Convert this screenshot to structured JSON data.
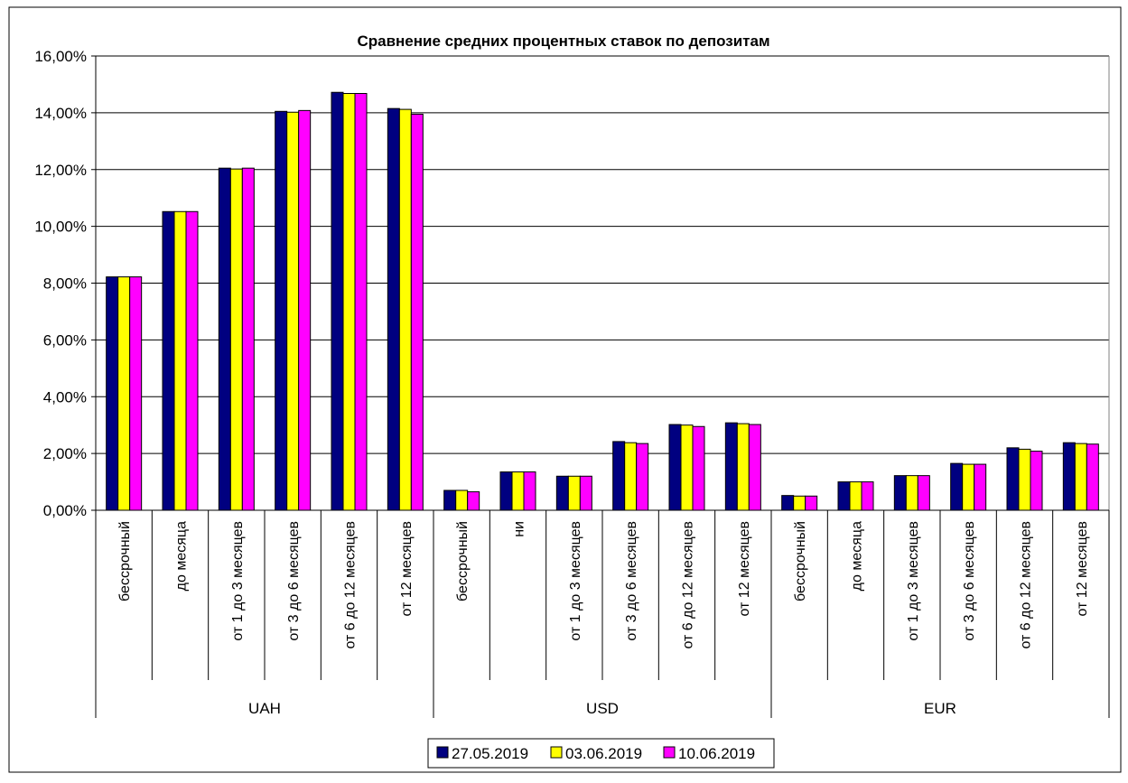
{
  "chart_data": {
    "type": "bar",
    "title": "Сравнение средних процентных ставок по депозитам",
    "ylim": [
      0,
      16
    ],
    "y_ticks": [
      "0,00%",
      "2,00%",
      "4,00%",
      "6,00%",
      "8,00%",
      "10,00%",
      "12,00%",
      "14,00%",
      "16,00%"
    ],
    "grid": true,
    "legend_position": "bottom",
    "groups": [
      {
        "name": "UAH",
        "categories": [
          "бессрочный",
          "до месяца",
          "от 1 до 3 месяцев",
          "от 3 до 6 месяцев",
          "от 6 до 12 месяцев",
          "от 12 месяцев"
        ]
      },
      {
        "name": "USD",
        "categories": [
          "бессрочный",
          "ни",
          "от 1 до 3 месяцев",
          "от 3 до 6 месяцев",
          "от 6 до 12 месяцев",
          "от 12 месяцев"
        ]
      },
      {
        "name": "EUR",
        "categories": [
          "бессрочный",
          "до месяца",
          "от 1 до 3 месяцев",
          "от 3 до 6 месяцев",
          "от 6 до 12 месяцев",
          "от 12 месяцев"
        ]
      }
    ],
    "series": [
      {
        "name": "27.05.2019",
        "color": "#000080",
        "values": [
          8.22,
          10.52,
          12.05,
          14.05,
          14.72,
          14.15,
          0.7,
          1.35,
          1.2,
          2.42,
          3.02,
          3.08,
          0.52,
          1.0,
          1.22,
          1.65,
          2.2,
          2.38
        ]
      },
      {
        "name": "03.06.2019",
        "color": "#ffff00",
        "values": [
          8.22,
          10.52,
          12.02,
          14.02,
          14.68,
          14.12,
          0.7,
          1.35,
          1.2,
          2.38,
          3.0,
          3.05,
          0.5,
          1.0,
          1.22,
          1.62,
          2.15,
          2.35
        ]
      },
      {
        "name": "10.06.2019",
        "color": "#ff00ff",
        "values": [
          8.22,
          10.52,
          12.05,
          14.08,
          14.68,
          13.95,
          0.65,
          1.35,
          1.2,
          2.35,
          2.95,
          3.02,
          0.5,
          1.0,
          1.22,
          1.62,
          2.08,
          2.33
        ]
      }
    ]
  }
}
